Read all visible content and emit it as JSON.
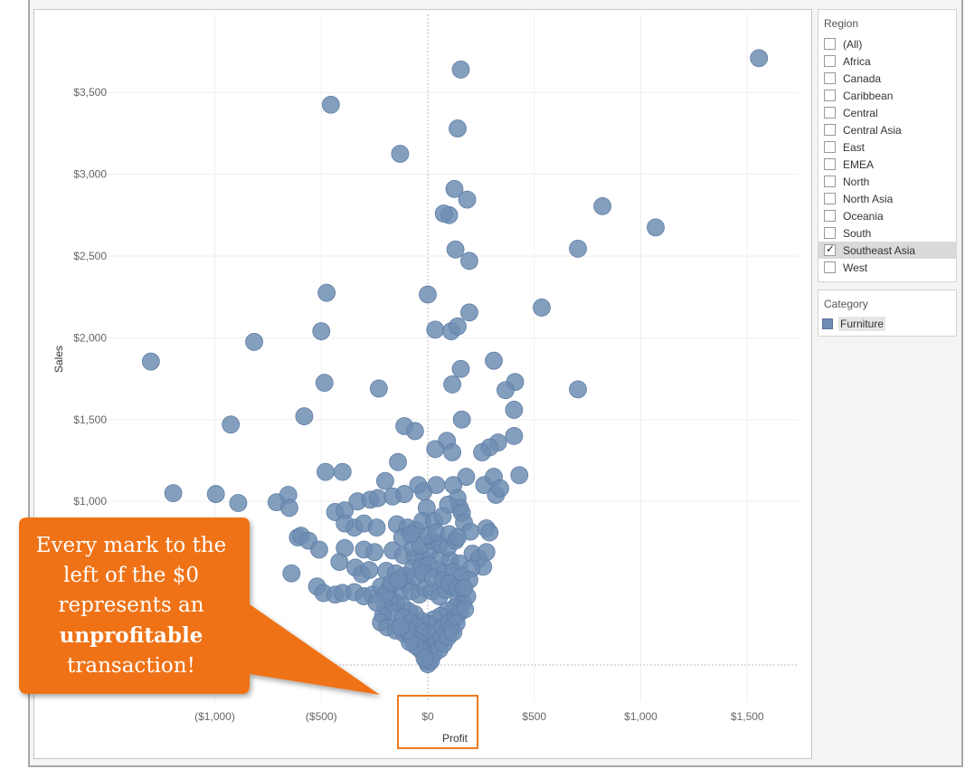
{
  "chart_data": {
    "type": "scatter",
    "title": "",
    "xlabel": "Profit",
    "ylabel": "Sales",
    "xlim": [
      -1450,
      1700
    ],
    "ylim": [
      -200,
      3800
    ],
    "x_ticks": [
      {
        "value": -1000,
        "label": "($1,000)"
      },
      {
        "value": -500,
        "label": "($500)"
      },
      {
        "value": 0,
        "label": "$0"
      },
      {
        "value": 500,
        "label": "$500"
      },
      {
        "value": 1000,
        "label": "$1,000"
      },
      {
        "value": 1500,
        "label": "$1,500"
      }
    ],
    "y_ticks": [
      {
        "value": 1000,
        "label": "$1,000"
      },
      {
        "value": 1500,
        "label": "$1,500"
      },
      {
        "value": 2000,
        "label": "$2,000"
      },
      {
        "value": 2500,
        "label": "$2,500"
      },
      {
        "value": 3000,
        "label": "$3,000"
      },
      {
        "value": 3500,
        "label": "$3,500"
      }
    ],
    "grid": true,
    "zero_lines": true,
    "color": "#6f8db3",
    "points": [
      [
        1555,
        3710
      ],
      [
        155,
        3640
      ],
      [
        -455,
        3425
      ],
      [
        140,
        3280
      ],
      [
        -130,
        3125
      ],
      [
        125,
        2910
      ],
      [
        185,
        2845
      ],
      [
        100,
        2750
      ],
      [
        75,
        2760
      ],
      [
        820,
        2805
      ],
      [
        1070,
        2675
      ],
      [
        705,
        2545
      ],
      [
        130,
        2540
      ],
      [
        195,
        2470
      ],
      [
        -475,
        2275
      ],
      [
        0,
        2265
      ],
      [
        535,
        2185
      ],
      [
        195,
        2155
      ],
      [
        -1300,
        1855
      ],
      [
        -815,
        1975
      ],
      [
        -500,
        2040
      ],
      [
        35,
        2050
      ],
      [
        110,
        2040
      ],
      [
        140,
        2070
      ],
      [
        155,
        1810
      ],
      [
        115,
        1715
      ],
      [
        310,
        1860
      ],
      [
        410,
        1730
      ],
      [
        365,
        1680
      ],
      [
        705,
        1685
      ],
      [
        -485,
        1725
      ],
      [
        -230,
        1690
      ],
      [
        -925,
        1470
      ],
      [
        -580,
        1520
      ],
      [
        -110,
        1460
      ],
      [
        -60,
        1430
      ],
      [
        160,
        1500
      ],
      [
        405,
        1560
      ],
      [
        405,
        1400
      ],
      [
        330,
        1360
      ],
      [
        290,
        1330
      ],
      [
        255,
        1300
      ],
      [
        90,
        1370
      ],
      [
        35,
        1320
      ],
      [
        115,
        1300
      ],
      [
        -140,
        1240
      ],
      [
        -480,
        1180
      ],
      [
        -400,
        1180
      ],
      [
        -200,
        1125
      ],
      [
        180,
        1150
      ],
      [
        265,
        1100
      ],
      [
        430,
        1160
      ],
      [
        310,
        1150
      ],
      [
        320,
        1040
      ],
      [
        340,
        1080
      ],
      [
        -1195,
        1050
      ],
      [
        -995,
        1045
      ],
      [
        -890,
        990
      ],
      [
        -710,
        995
      ],
      [
        -655,
        1040
      ],
      [
        -650,
        960
      ],
      [
        -435,
        935
      ],
      [
        -390,
        945
      ],
      [
        -330,
        1000
      ],
      [
        -270,
        1010
      ],
      [
        -235,
        1020
      ],
      [
        -165,
        1030
      ],
      [
        -110,
        1045
      ],
      [
        -45,
        1100
      ],
      [
        -20,
        1060
      ],
      [
        40,
        1100
      ],
      [
        120,
        1100
      ],
      [
        140,
        1020
      ],
      [
        150,
        960
      ],
      [
        95,
        980
      ],
      [
        -5,
        960
      ],
      [
        -345,
        840
      ],
      [
        -390,
        865
      ],
      [
        -300,
        865
      ],
      [
        -240,
        840
      ],
      [
        -145,
        860
      ],
      [
        -95,
        840
      ],
      [
        -55,
        825
      ],
      [
        -25,
        880
      ],
      [
        30,
        880
      ],
      [
        70,
        910
      ],
      [
        160,
        930
      ],
      [
        170,
        870
      ],
      [
        275,
        835
      ],
      [
        290,
        810
      ],
      [
        200,
        815
      ],
      [
        -610,
        780
      ],
      [
        -595,
        790
      ],
      [
        -560,
        760
      ],
      [
        -510,
        705
      ],
      [
        -390,
        715
      ],
      [
        -300,
        705
      ],
      [
        -250,
        690
      ],
      [
        -165,
        700
      ],
      [
        -115,
        670
      ],
      [
        -60,
        660
      ],
      [
        -20,
        650
      ],
      [
        10,
        700
      ],
      [
        60,
        660
      ],
      [
        105,
        640
      ],
      [
        150,
        620
      ],
      [
        210,
        680
      ],
      [
        240,
        650
      ],
      [
        275,
        690
      ],
      [
        260,
        600
      ],
      [
        205,
        590
      ],
      [
        -415,
        630
      ],
      [
        -340,
        595
      ],
      [
        -310,
        555
      ],
      [
        -275,
        580
      ],
      [
        -195,
        575
      ],
      [
        -150,
        560
      ],
      [
        -110,
        545
      ],
      [
        -70,
        590
      ],
      [
        -30,
        600
      ],
      [
        5,
        610
      ],
      [
        45,
        580
      ],
      [
        80,
        560
      ],
      [
        120,
        570
      ],
      [
        160,
        545
      ],
      [
        195,
        520
      ],
      [
        -640,
        560
      ],
      [
        -520,
        480
      ],
      [
        -490,
        440
      ],
      [
        -435,
        430
      ],
      [
        -400,
        440
      ],
      [
        -345,
        445
      ],
      [
        -300,
        420
      ],
      [
        -260,
        430
      ],
      [
        -220,
        480
      ],
      [
        -180,
        470
      ],
      [
        -130,
        450
      ],
      [
        -100,
        500
      ],
      [
        -75,
        450
      ],
      [
        -40,
        430
      ],
      [
        -10,
        470
      ],
      [
        20,
        450
      ],
      [
        55,
        420
      ],
      [
        85,
        460
      ],
      [
        115,
        480
      ],
      [
        145,
        400
      ],
      [
        165,
        380
      ],
      [
        185,
        420
      ],
      [
        125,
        350
      ],
      [
        90,
        330
      ],
      [
        60,
        300
      ],
      [
        30,
        280
      ],
      [
        0,
        250
      ],
      [
        -30,
        270
      ],
      [
        -60,
        310
      ],
      [
        -90,
        330
      ],
      [
        -120,
        360
      ],
      [
        -150,
        380
      ],
      [
        -180,
        400
      ],
      [
        -200,
        350
      ],
      [
        -160,
        320
      ],
      [
        -120,
        290
      ],
      [
        -80,
        260
      ],
      [
        -50,
        230
      ],
      [
        -20,
        200
      ],
      [
        10,
        180
      ],
      [
        40,
        200
      ],
      [
        70,
        230
      ],
      [
        100,
        260
      ],
      [
        130,
        290
      ],
      [
        150,
        320
      ],
      [
        175,
        340
      ],
      [
        -210,
        300
      ],
      [
        -220,
        260
      ],
      [
        -190,
        230
      ],
      [
        -150,
        210
      ],
      [
        -110,
        190
      ],
      [
        -80,
        170
      ],
      [
        -55,
        150
      ],
      [
        -35,
        130
      ],
      [
        -15,
        110
      ],
      [
        5,
        100
      ],
      [
        25,
        115
      ],
      [
        45,
        140
      ],
      [
        65,
        165
      ],
      [
        85,
        190
      ],
      [
        110,
        220
      ],
      [
        135,
        255
      ],
      [
        -10,
        60
      ],
      [
        10,
        40
      ],
      [
        -25,
        80
      ],
      [
        30,
        70
      ],
      [
        -40,
        100
      ],
      [
        55,
        95
      ],
      [
        -5,
        20
      ],
      [
        0,
        5
      ],
      [
        15,
        25
      ],
      [
        -15,
        40
      ],
      [
        -60,
        120
      ],
      [
        75,
        130
      ],
      [
        95,
        170
      ],
      [
        -85,
        140
      ],
      [
        -95,
        210
      ],
      [
        -130,
        230
      ],
      [
        120,
        200
      ],
      [
        -200,
        430
      ],
      [
        -240,
        380
      ],
      [
        -170,
        500
      ],
      [
        -140,
        520
      ],
      [
        -60,
        540
      ],
      [
        -20,
        560
      ],
      [
        25,
        530
      ],
      [
        70,
        520
      ],
      [
        100,
        500
      ],
      [
        140,
        470
      ],
      [
        170,
        470
      ],
      [
        -70,
        720
      ],
      [
        -35,
        730
      ],
      [
        20,
        760
      ],
      [
        55,
        740
      ],
      [
        95,
        720
      ],
      [
        130,
        760
      ],
      [
        -120,
        780
      ],
      [
        -80,
        800
      ],
      [
        0,
        790
      ],
      [
        40,
        810
      ],
      [
        100,
        800
      ],
      [
        140,
        780
      ]
    ]
  },
  "filters": {
    "region": {
      "title": "Region",
      "items": [
        {
          "label": "(All)",
          "checked": false
        },
        {
          "label": "Africa",
          "checked": false
        },
        {
          "label": "Canada",
          "checked": false
        },
        {
          "label": "Caribbean",
          "checked": false
        },
        {
          "label": "Central",
          "checked": false
        },
        {
          "label": "Central Asia",
          "checked": false
        },
        {
          "label": "East",
          "checked": false
        },
        {
          "label": "EMEA",
          "checked": false
        },
        {
          "label": "North",
          "checked": false
        },
        {
          "label": "North Asia",
          "checked": false
        },
        {
          "label": "Oceania",
          "checked": false
        },
        {
          "label": "South",
          "checked": false
        },
        {
          "label": "Southeast Asia",
          "checked": true
        },
        {
          "label": "West",
          "checked": false
        }
      ]
    },
    "category": {
      "title": "Category",
      "legend_item": "Furniture",
      "color": "#6f8db3"
    }
  },
  "callout": {
    "line1": "Every mark to the",
    "line2": "left of the $0",
    "line3": "represents an",
    "line4_bold": "unprofitable",
    "line5": "transaction!",
    "color": "#f07214"
  },
  "check_glyph": "✓"
}
